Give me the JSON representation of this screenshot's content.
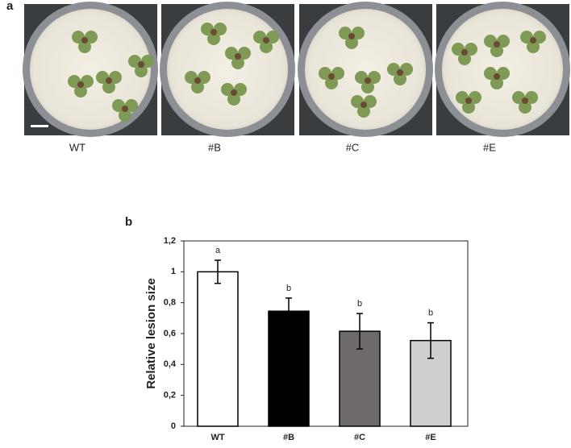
{
  "panel_a": {
    "label": "a",
    "captions": [
      "WT",
      "#B",
      "#C",
      "#E"
    ]
  },
  "chart_data": {
    "type": "bar",
    "label": "b",
    "y_label": "Relative lesion size",
    "categories": [
      "WT",
      "#B",
      "#C",
      "#E"
    ],
    "values": [
      1,
      0.745,
      0.615,
      0.555
    ],
    "errors": [
      0.075,
      0.085,
      0.115,
      0.115
    ],
    "annotations": [
      "a",
      "b",
      "b",
      "b"
    ],
    "colors": [
      "#ffffff",
      "#000000",
      "#6e6a69",
      "#d0cfcf"
    ],
    "ylim": [
      0,
      1.2
    ],
    "yticks": [
      0,
      {
        "value": 0.2,
        "label": "0,2"
      },
      {
        "value": 0.4,
        "label": "0,4"
      },
      {
        "value": 0.6,
        "label": "0,6"
      },
      {
        "value": 0.8,
        "label": "0,8"
      },
      1,
      {
        "value": 1.2,
        "label": "1,2"
      }
    ]
  }
}
